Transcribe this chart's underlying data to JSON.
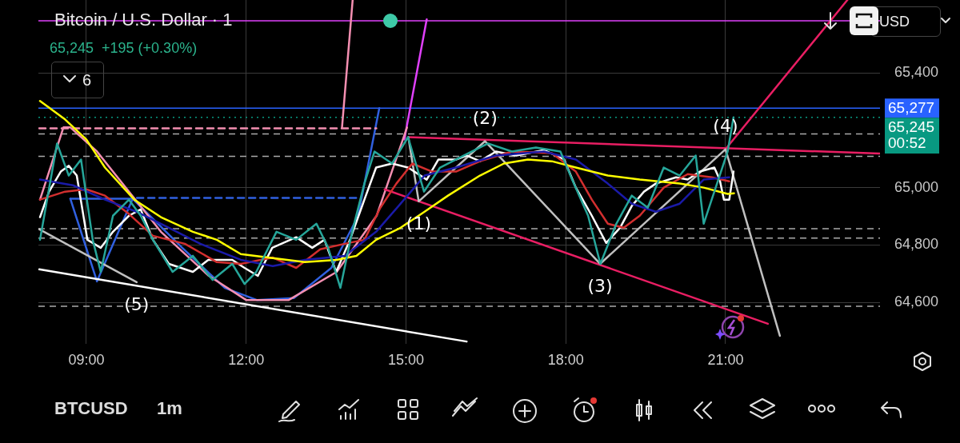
{
  "chart_data": {
    "type": "line",
    "title": "Bitcoin / U.S. Dollar · 1",
    "subtitle": "65,245  +195 (+0.30%)",
    "xlim": [
      8.1,
      23.9
    ],
    "ylim": [
      64455,
      65655
    ],
    "xticks": [
      {
        "value": 9,
        "label": "09:00"
      },
      {
        "value": 12,
        "label": "12:00"
      },
      {
        "value": 15,
        "label": "15:00"
      },
      {
        "value": 18,
        "label": "18:00"
      },
      {
        "value": 21,
        "label": "21:00"
      }
    ],
    "yticks": [
      {
        "value": 64600,
        "label": "64,600"
      },
      {
        "value": 64800,
        "label": "64,800"
      },
      {
        "value": 65000,
        "label": "65,000"
      },
      {
        "value": 65400,
        "label": "65,400"
      }
    ],
    "grid": true,
    "legend": false,
    "marker": "none",
    "series": [
      {
        "color": "#26a69a",
        "x": [
          8.13,
          8.45,
          8.67,
          8.9,
          9.12,
          9.27,
          9.5,
          9.8,
          10.02,
          10.25,
          10.62,
          11.0,
          11.37,
          11.74,
          11.97,
          12.19,
          12.57,
          12.94,
          13.32,
          13.54,
          13.77,
          13.99,
          14.22,
          14.41,
          14.74,
          15.04,
          15.34,
          15.64,
          16.09,
          16.54,
          16.99,
          17.44,
          17.9,
          18.12,
          18.42,
          18.65,
          18.95,
          19.24,
          19.54,
          19.84,
          20.14,
          20.44,
          20.59,
          20.89,
          21.04,
          21.15
        ],
        "values": [
          64818,
          65154,
          65042,
          65098,
          64818,
          64706,
          64902,
          64958,
          64902,
          64818,
          64706,
          64762,
          64678,
          64734,
          64664,
          64706,
          64846,
          64818,
          64874,
          64790,
          64650,
          64846,
          65014,
          65126,
          65084,
          65176,
          64986,
          65070,
          65112,
          65154,
          65126,
          65140,
          65126,
          65028,
          64902,
          64734,
          64874,
          64972,
          64930,
          65070,
          65042,
          65112,
          64874,
          65042,
          65126,
          65245
        ]
      },
      {
        "color": "#ffff00",
        "x": [
          8.13,
          8.6,
          9.0,
          9.35,
          9.9,
          10.4,
          11.0,
          11.45,
          11.9,
          12.5,
          13.1,
          13.7,
          14.07,
          14.44,
          14.9,
          15.35,
          15.79,
          16.39,
          16.84,
          17.29,
          17.74,
          18.19,
          18.79,
          19.39,
          20.14,
          20.59,
          21.04,
          21.16
        ],
        "values": [
          65302,
          65238,
          65168,
          65070,
          64958,
          64897,
          64846,
          64818,
          64768,
          64754,
          64740,
          64748,
          64762,
          64818,
          64860,
          64916,
          64972,
          65042,
          65084,
          65098,
          65092,
          65070,
          65042,
          65028,
          65014,
          65000,
          64978,
          64980
        ]
      },
      {
        "color": "#1a1aa8",
        "x": [
          8.13,
          8.75,
          9.35,
          9.94,
          10.55,
          11.14,
          11.9,
          12.5,
          13.1,
          13.85,
          14.44,
          14.9,
          15.35,
          15.94,
          16.69,
          17.59,
          18.19,
          18.79,
          19.24,
          19.69,
          20.14,
          20.59,
          21.07
        ],
        "values": [
          65028,
          65008,
          64958,
          64916,
          64860,
          64804,
          64748,
          64726,
          64748,
          64762,
          64846,
          64944,
          65042,
          65070,
          65112,
          65126,
          65098,
          65014,
          64944,
          64916,
          64944,
          65028,
          65036
        ]
      },
      {
        "color": "#d32f2f",
        "x": [
          8.13,
          8.6,
          9.0,
          9.35,
          9.8,
          10.25,
          10.85,
          11.45,
          11.9,
          12.5,
          12.94,
          13.39,
          13.85,
          14.22,
          14.52,
          14.82,
          15.12,
          15.49,
          15.94,
          16.39,
          16.99,
          17.74,
          18.19,
          18.49,
          18.79,
          19.09,
          19.39,
          19.84,
          20.29,
          20.74,
          21.07
        ],
        "values": [
          64958,
          64986,
          64994,
          64972,
          64908,
          64832,
          64804,
          64740,
          64734,
          64756,
          64720,
          64785,
          64804,
          64818,
          64930,
          65014,
          65084,
          65056,
          65056,
          65092,
          65126,
          65120,
          65056,
          64958,
          64874,
          64860,
          64902,
          65000,
          65047,
          65036,
          65022
        ]
      },
      {
        "color": "#ffffff",
        "x": [
          8.13,
          8.3,
          8.52,
          8.67,
          8.82,
          9.02,
          9.27,
          9.5,
          9.8,
          10.02,
          10.25,
          10.55,
          11.0,
          11.29,
          11.74,
          11.97,
          12.22,
          12.49,
          12.94,
          13.24,
          13.47,
          13.69,
          13.95,
          14.22,
          14.44,
          14.74,
          15.04,
          15.39,
          15.61,
          15.94,
          16.14,
          16.39,
          16.69,
          17.07,
          17.59,
          17.97,
          18.19,
          18.49,
          18.76,
          19.02,
          19.24,
          19.47,
          19.69,
          20.07,
          20.29,
          20.52,
          20.79,
          20.89,
          20.97,
          21.07,
          21.15
        ],
        "values": [
          64897,
          64986,
          65056,
          65076,
          65042,
          64818,
          64790,
          64846,
          64902,
          64924,
          64818,
          64734,
          64706,
          64748,
          64748,
          64720,
          64692,
          64790,
          64827,
          64790,
          64818,
          64706,
          64818,
          64958,
          65070,
          65084,
          65070,
          65028,
          65098,
          65098,
          65112,
          65092,
          65126,
          65112,
          65131,
          65098,
          65000,
          64902,
          64807,
          64860,
          64936,
          64986,
          65014,
          65036,
          65028,
          65056,
          65070,
          65028,
          64958,
          64958,
          65056
        ]
      },
      {
        "color": "#ffffff",
        "x": [
          8.115,
          16.14
        ],
        "values": [
          64715,
          64463
        ]
      },
      {
        "color": "#c0c0c0",
        "x": [
          8.115,
          9.945
        ],
        "values": [
          64855,
          64670
        ]
      },
      {
        "color": "#c0c0c0",
        "x": [
          15.045,
          15.24,
          16.485,
          18.645,
          21.0,
          22.02
        ],
        "values": [
          65176,
          64952,
          65162,
          64734,
          65134,
          64483
        ]
      },
      {
        "color": "#e91e63",
        "x": [
          14.6,
          21.795
        ],
        "values": [
          64994,
          64525
        ]
      },
      {
        "color": "#e91e63",
        "x": [
          15.045,
          23.89
        ],
        "values": [
          65176,
          65119
        ]
      },
      {
        "color": "#e91e63",
        "x": [
          21.0,
          23.29
        ],
        "values": [
          65134,
          65655
        ]
      },
      {
        "color": "#f48fb1",
        "x": [
          8.13,
          8.57,
          8.7,
          9.2,
          10.4,
          11.3,
          12.0,
          12.8,
          13.7,
          14.45,
          15.02
        ],
        "values": [
          64958,
          65210,
          65210,
          65126,
          64846,
          64692,
          64608,
          64608,
          64706,
          64902,
          65210
        ]
      },
      {
        "color": "#f48fb1",
        "line_style": "dashed",
        "x": [
          8.115,
          14.445
        ],
        "values": [
          65207,
          65207
        ]
      },
      {
        "color": "#f48fb1",
        "x": [
          13.8,
          14.0
        ],
        "values": [
          65210,
          65655
        ]
      },
      {
        "color": "#e040fb",
        "x": [
          14.97,
          15.39
        ],
        "values": [
          65168,
          65587
        ]
      },
      {
        "color": "#3060e0",
        "x": [
          8.7,
          9.2,
          9.87
        ],
        "values": [
          64961,
          64673,
          64961
        ]
      },
      {
        "color": "#3060e0",
        "x": [
          8.7,
          9.87
        ],
        "values": [
          64961,
          64961
        ]
      },
      {
        "color": "#3060e0",
        "x": [
          9.87,
          10.8,
          11.6,
          12.2,
          12.9,
          13.6,
          14.1,
          14.5
        ],
        "values": [
          64961,
          64790,
          64650,
          64608,
          64615,
          64720,
          64900,
          65277
        ]
      },
      {
        "color": "#3060e0",
        "line_style": "dashed",
        "x": [
          9.95,
          14.15
        ],
        "values": [
          64964,
          64964
        ]
      }
    ],
    "ref_lines": [
      {
        "axis": "y",
        "value": 65582,
        "color": "#e040fb",
        "line_style": "solid"
      },
      {
        "axis": "y",
        "value": 65277,
        "label": "65,277",
        "color": "#2962ff",
        "line_style": "solid"
      },
      {
        "axis": "y",
        "value": 65245,
        "label": "65,245",
        "color": "#089981",
        "line_style": "dotted"
      },
      {
        "axis": "y",
        "value": 65187,
        "color": "#aaaaaa",
        "line_style": "dashed"
      },
      {
        "axis": "y",
        "value": 65109,
        "color": "#aaaaaa",
        "line_style": "dashed"
      },
      {
        "axis": "y",
        "value": 64857,
        "color": "#aaaaaa",
        "line_style": "dashed"
      },
      {
        "axis": "y",
        "value": 64824,
        "color": "#aaaaaa",
        "line_style": "dashed"
      },
      {
        "axis": "y",
        "value": 64586,
        "color": "#aaaaaa",
        "line_style": "dashed"
      }
    ],
    "annotations": [
      {
        "text": "(1)",
        "x": 15.24,
        "y": 64952
      },
      {
        "text": "(2)",
        "x": 16.485,
        "y": 65162
      },
      {
        "text": "(3)",
        "x": 18.645,
        "y": 64734
      },
      {
        "text": "(4)",
        "x": 21.0,
        "y": 65134
      },
      {
        "text": "(5)",
        "x": 9.945,
        "y": 64670
      },
      "00:52",
      "6",
      "USD",
      "BTCUSD",
      "1m"
    ]
  }
}
